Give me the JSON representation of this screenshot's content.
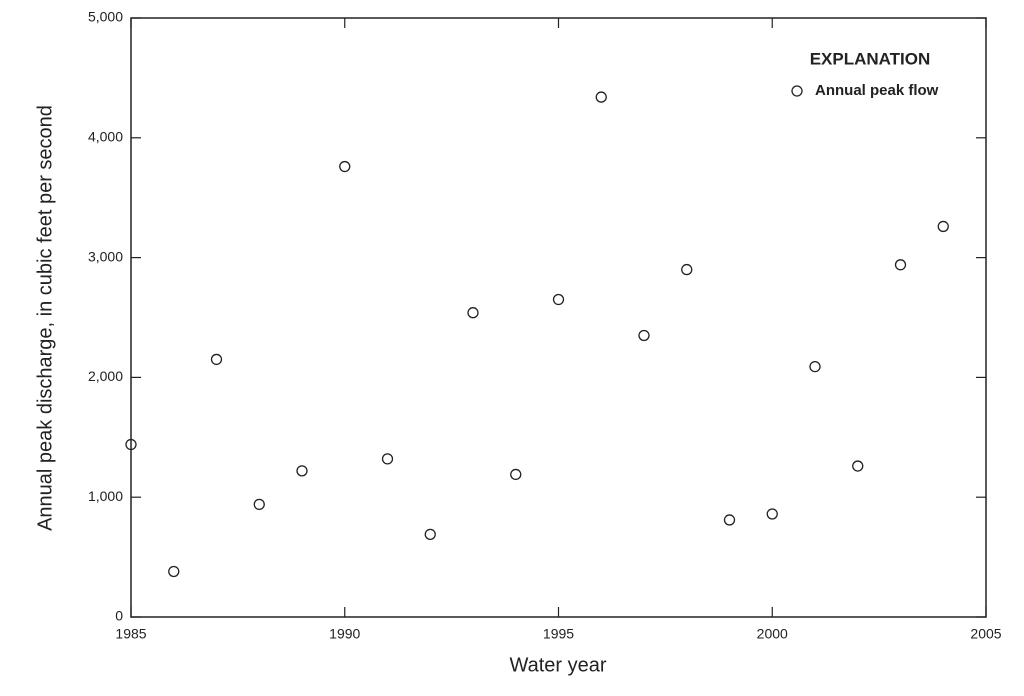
{
  "chart_data": {
    "type": "scatter",
    "x_label": "Water year",
    "y_label": "Annual peak discharge, in cubic feet per second",
    "legend_title": "EXPLANATION",
    "legend": "top-right",
    "x": [
      1985,
      1986,
      1987,
      1988,
      1989,
      1990,
      1991,
      1992,
      1993,
      1994,
      1995,
      1996,
      1997,
      1998,
      1999,
      2000,
      2001,
      2002,
      2003,
      2004
    ],
    "series": [
      {
        "name": "Annual peak flow",
        "color": "#222222",
        "values": [
          1440,
          380,
          2150,
          940,
          1220,
          3760,
          1320,
          690,
          2540,
          1190,
          2650,
          4340,
          2350,
          2900,
          810,
          860,
          2090,
          1260,
          2940,
          3260
        ]
      }
    ],
    "xlim": [
      1985,
      2005
    ],
    "xticks": [
      1985,
      1990,
      1995,
      2000,
      2005
    ],
    "ylim": [
      0,
      5000
    ],
    "yticks": [
      0,
      {
        "value": 1000,
        "label": "1,000"
      },
      {
        "value": 2000,
        "label": "2,000"
      },
      {
        "value": 3000,
        "label": "3,000"
      },
      {
        "value": 4000,
        "label": "4,000"
      },
      {
        "value": 5000,
        "label": "5,000"
      }
    ]
  }
}
